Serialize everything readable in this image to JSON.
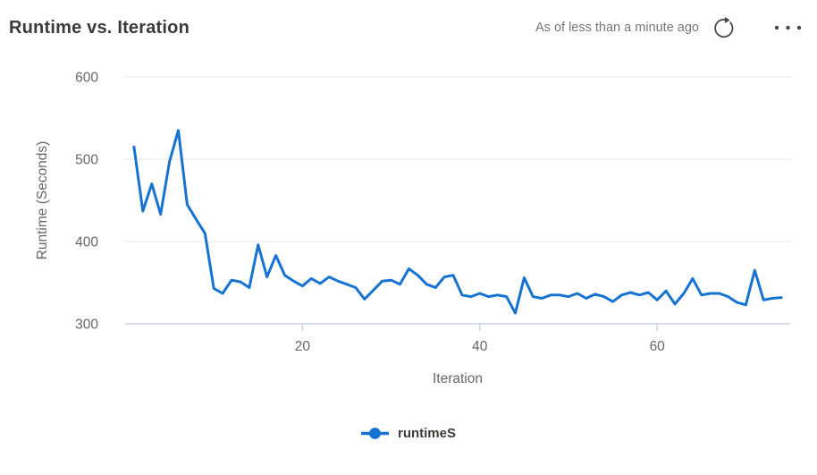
{
  "header": {
    "title": "Runtime vs. Iteration",
    "status": "As of less than a minute ago"
  },
  "icons": {
    "refresh": "circular-arrow-refresh",
    "more": "horizontal-ellipsis"
  },
  "legend": {
    "series_label": "runtimeS"
  },
  "colors": {
    "line": "#1673d2",
    "gridline": "#e6e6e6",
    "axis_line": "#c9d3e8",
    "tick_text": "#666666",
    "title_text": "#3b3a39",
    "status_text": "#767676",
    "icon": "#484644"
  },
  "chart_data": {
    "type": "line",
    "title": "Runtime vs. Iteration",
    "xlabel": "Iteration",
    "ylabel": "Runtime (Seconds)",
    "xlim": [
      0,
      75
    ],
    "ylim": [
      300,
      600
    ],
    "x_ticks": [
      20,
      40,
      60
    ],
    "y_ticks": [
      300,
      400,
      500,
      600
    ],
    "grid": "horizontal-only",
    "legend_position": "bottom",
    "series": [
      {
        "name": "runtimeS",
        "color": "#1673d2",
        "x_start": 1,
        "x_step": 1,
        "values": [
          515,
          437,
          470,
          433,
          497,
          535,
          445,
          427,
          410,
          343,
          337,
          353,
          351,
          344,
          396,
          357,
          383,
          359,
          352,
          346,
          355,
          349,
          357,
          352,
          348,
          344,
          330,
          341,
          352,
          353,
          348,
          367,
          359,
          348,
          344,
          357,
          359,
          335,
          333,
          337,
          333,
          335,
          333,
          313,
          356,
          333,
          331,
          335,
          335,
          333,
          337,
          331,
          336,
          333,
          327,
          335,
          338,
          335,
          338,
          329,
          340,
          324,
          337,
          355,
          335,
          337,
          337,
          333,
          326,
          323,
          365,
          329,
          331,
          332
        ]
      }
    ]
  }
}
